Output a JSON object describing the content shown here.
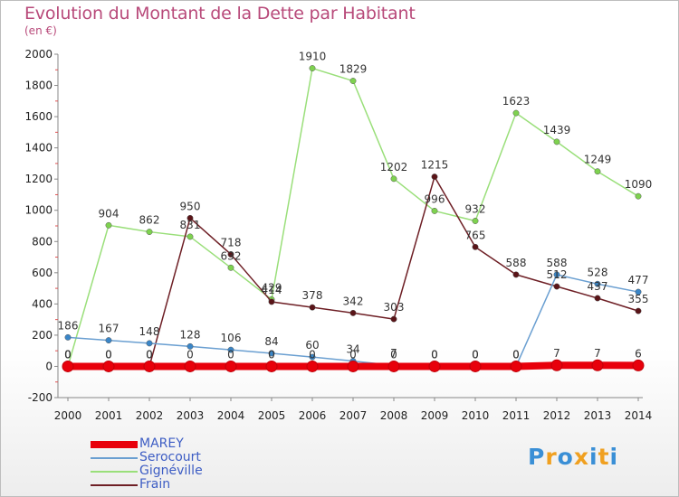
{
  "chart_data": {
    "type": "line",
    "title": "Evolution du Montant de la Dette par Habitant",
    "subtitle": "(en €)",
    "x": [
      "2000",
      "2001",
      "2002",
      "2003",
      "2004",
      "2005",
      "2006",
      "2007",
      "2008",
      "2009",
      "2010",
      "2011",
      "2012",
      "2013",
      "2014"
    ],
    "ylim": [
      -200,
      2000
    ],
    "yticks": [
      "-200",
      "0",
      "200",
      "400",
      "600",
      "800",
      "1000",
      "1200",
      "1400",
      "1600",
      "1800",
      "2000"
    ],
    "grid": false,
    "legend_position": "bottom-left",
    "series": [
      {
        "name": "MAREY",
        "color": "#e8000b",
        "values": [
          0,
          0,
          0,
          0,
          0,
          0,
          0,
          0,
          0,
          0,
          0,
          0,
          7,
          7,
          6
        ]
      },
      {
        "name": "Serocourt",
        "color": "#6a9fd1",
        "values": [
          186,
          167,
          148,
          128,
          106,
          84,
          60,
          34,
          7,
          0,
          0,
          0,
          588,
          528,
          477
        ]
      },
      {
        "name": "Gignéville",
        "color": "#9adf7a",
        "values": [
          0,
          904,
          862,
          831,
          632,
          429,
          1910,
          1829,
          1202,
          996,
          932,
          1623,
          1439,
          1249,
          1090
        ]
      },
      {
        "name": "Frain",
        "color": "#6e1f25",
        "values": [
          0,
          0,
          0,
          950,
          718,
          414,
          378,
          342,
          303,
          1215,
          765,
          588,
          512,
          437,
          355
        ]
      }
    ],
    "data_labels": {
      "MAREY": [
        "0",
        "0",
        "0",
        "0",
        "0",
        "0",
        "0",
        "0",
        "0",
        "0",
        "0",
        "0",
        "7",
        "7",
        "6"
      ],
      "Serocourt": [
        "186",
        "167",
        "148",
        "128",
        "106",
        "84",
        "60",
        "34",
        "7",
        "0",
        "0",
        "0",
        "588",
        "528",
        "477"
      ],
      "Gignéville": [
        "0",
        "904",
        "862",
        "831",
        "632",
        "429",
        "1910",
        "1829",
        "1202",
        "996",
        "932",
        "1623",
        "1439",
        "1249",
        "1090"
      ],
      "Frain": [
        "0",
        "0",
        "0",
        "950",
        "718",
        "414",
        "378",
        "342",
        "303",
        "1215",
        "765",
        "588",
        "512",
        "437",
        "355"
      ]
    }
  },
  "brand": {
    "text": "Proxiti"
  }
}
